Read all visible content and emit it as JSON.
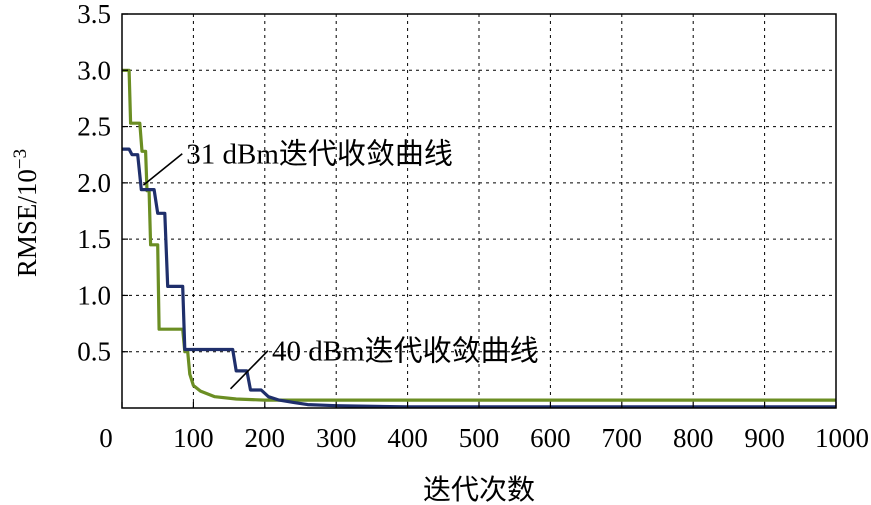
{
  "chart_data": {
    "type": "line",
    "xlabel": "迭代次数",
    "ylabel_main": "RMSE/10",
    "ylabel_exp": "−3",
    "xlim": [
      0,
      1000
    ],
    "ylim": [
      0,
      3.5
    ],
    "xticks": [
      0,
      100,
      200,
      300,
      400,
      500,
      600,
      700,
      800,
      900,
      1000
    ],
    "xtick_labels": [
      "0",
      "100",
      "200",
      "300",
      "400",
      "500",
      "600",
      "700",
      "800",
      "900",
      "1000"
    ],
    "yticks": [
      0.5,
      1.0,
      1.5,
      2.0,
      2.5,
      3.0,
      3.5
    ],
    "ytick_labels": [
      "0.5",
      "1.0",
      "1.5",
      "2.0",
      "2.5",
      "3.0",
      "3.5"
    ],
    "grid": true,
    "series": [
      {
        "color": "#6b8e23",
        "points": [
          [
            0,
            3.0
          ],
          [
            10,
            3.0
          ],
          [
            12,
            2.53
          ],
          [
            25,
            2.53
          ],
          [
            28,
            2.28
          ],
          [
            33,
            2.28
          ],
          [
            35,
            1.93
          ],
          [
            38,
            1.93
          ],
          [
            40,
            1.45
          ],
          [
            50,
            1.45
          ],
          [
            52,
            0.7
          ],
          [
            85,
            0.7
          ],
          [
            88,
            0.5
          ],
          [
            92,
            0.5
          ],
          [
            95,
            0.3
          ],
          [
            100,
            0.2
          ],
          [
            110,
            0.15
          ],
          [
            130,
            0.1
          ],
          [
            160,
            0.08
          ],
          [
            200,
            0.07
          ],
          [
            1000,
            0.07
          ]
        ]
      },
      {
        "color": "#1f2f6b",
        "points": [
          [
            0,
            2.3
          ],
          [
            10,
            2.3
          ],
          [
            14,
            2.25
          ],
          [
            22,
            2.25
          ],
          [
            27,
            1.94
          ],
          [
            45,
            1.94
          ],
          [
            50,
            1.73
          ],
          [
            60,
            1.73
          ],
          [
            64,
            1.08
          ],
          [
            85,
            1.08
          ],
          [
            88,
            0.52
          ],
          [
            155,
            0.52
          ],
          [
            160,
            0.33
          ],
          [
            175,
            0.33
          ],
          [
            180,
            0.16
          ],
          [
            195,
            0.16
          ],
          [
            205,
            0.1
          ],
          [
            220,
            0.07
          ],
          [
            240,
            0.05
          ],
          [
            260,
            0.03
          ],
          [
            300,
            0.02
          ],
          [
            400,
            0.01
          ],
          [
            1000,
            0.01
          ]
        ]
      }
    ],
    "annotations": [
      {
        "text": "31 dBm迭代收敛曲线",
        "x": 90,
        "y": 2.17,
        "target": [
          30,
          1.98
        ]
      },
      {
        "text": "40 dBm迭代收敛曲线",
        "x": 210,
        "y": 0.42,
        "target": [
          152,
          0.17
        ]
      }
    ]
  }
}
